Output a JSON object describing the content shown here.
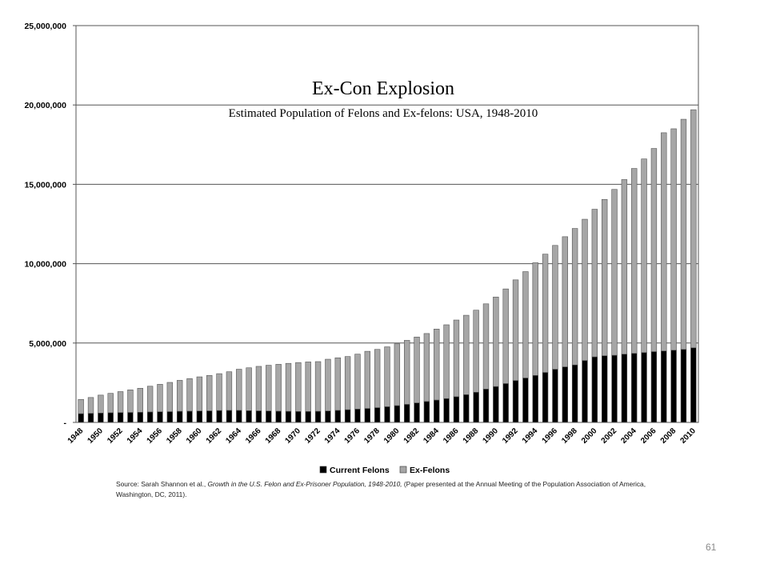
{
  "chart_data": {
    "type": "bar",
    "stacked": true,
    "title": "Ex-Con Explosion",
    "subtitle": "Estimated Population of Felons and Ex-felons: USA, 1948-2010",
    "xlabel": "",
    "ylabel": "",
    "ylim": [
      0,
      25000000
    ],
    "y_ticks": [
      0,
      5000000,
      10000000,
      15000000,
      20000000,
      25000000
    ],
    "y_tick_labels": [
      "-",
      "5,000,000",
      "10,000,000",
      "15,000,000",
      "20,000,000",
      "25,000,000"
    ],
    "grid": true,
    "legend_position": "bottom",
    "categories": [
      "1948",
      "1949",
      "1950",
      "1951",
      "1952",
      "1953",
      "1954",
      "1955",
      "1956",
      "1957",
      "1958",
      "1959",
      "1960",
      "1961",
      "1962",
      "1963",
      "1964",
      "1965",
      "1966",
      "1967",
      "1968",
      "1969",
      "1970",
      "1971",
      "1972",
      "1973",
      "1974",
      "1975",
      "1976",
      "1977",
      "1978",
      "1979",
      "1980",
      "1981",
      "1982",
      "1983",
      "1984",
      "1985",
      "1986",
      "1987",
      "1988",
      "1989",
      "1990",
      "1991",
      "1992",
      "1993",
      "1994",
      "1995",
      "1996",
      "1997",
      "1998",
      "1999",
      "2000",
      "2001",
      "2002",
      "2003",
      "2004",
      "2005",
      "2006",
      "2007",
      "2008",
      "2009",
      "2010"
    ],
    "x_tick_labels": [
      "1948",
      "1950",
      "1952",
      "1954",
      "1956",
      "1958",
      "1960",
      "1962",
      "1964",
      "1966",
      "1968",
      "1970",
      "1972",
      "1974",
      "1976",
      "1978",
      "1980",
      "1982",
      "1984",
      "1986",
      "1988",
      "1990",
      "1992",
      "1994",
      "1996",
      "1998",
      "2000",
      "2002",
      "2004",
      "2006",
      "2008",
      "2010"
    ],
    "series": [
      {
        "name": "Current Felons",
        "color": "#000000",
        "values": [
          550000,
          570000,
          590000,
          610000,
          620000,
          630000,
          640000,
          660000,
          670000,
          680000,
          700000,
          710000,
          720000,
          730000,
          750000,
          760000,
          760000,
          740000,
          730000,
          720000,
          710000,
          700000,
          690000,
          690000,
          700000,
          720000,
          760000,
          800000,
          840000,
          880000,
          930000,
          990000,
          1060000,
          1140000,
          1230000,
          1320000,
          1410000,
          1500000,
          1620000,
          1750000,
          1900000,
          2100000,
          2260000,
          2450000,
          2640000,
          2800000,
          2960000,
          3150000,
          3350000,
          3500000,
          3620000,
          3900000,
          4130000,
          4200000,
          4230000,
          4300000,
          4350000,
          4400000,
          4460000,
          4500000,
          4550000,
          4600000,
          4700000
        ]
      },
      {
        "name": "Ex-Felons",
        "color": "#a6a6a6",
        "values": [
          900000,
          1000000,
          1130000,
          1220000,
          1320000,
          1420000,
          1510000,
          1620000,
          1730000,
          1840000,
          1950000,
          2050000,
          2150000,
          2230000,
          2320000,
          2430000,
          2590000,
          2700000,
          2800000,
          2880000,
          2950000,
          3020000,
          3080000,
          3120000,
          3130000,
          3260000,
          3310000,
          3350000,
          3460000,
          3600000,
          3670000,
          3770000,
          3890000,
          4030000,
          4150000,
          4280000,
          4470000,
          4650000,
          4830000,
          5000000,
          5170000,
          5370000,
          5640000,
          5960000,
          6340000,
          6700000,
          7100000,
          7450000,
          7800000,
          8200000,
          8600000,
          8900000,
          9300000,
          9850000,
          10450000,
          11000000,
          11650000,
          12200000,
          12800000,
          13750000,
          13950000,
          14500000,
          15000000
        ]
      }
    ],
    "legend": [
      "Current Felons",
      "Ex-Felons"
    ]
  },
  "source_note": {
    "prefix": "Source: Sarah Shannon et al., ",
    "italic": "Growth in the U.S. Felon and Ex-Prisoner Population, 1948-2010,",
    "suffix": " (Paper presented at the Annual Meeting of the Population Association of America, Washington, DC, 2011)."
  },
  "page_number": "61"
}
